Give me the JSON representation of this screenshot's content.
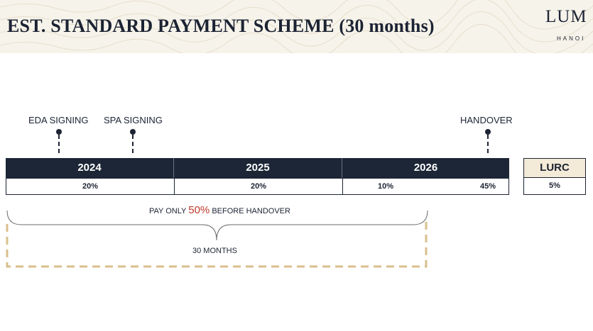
{
  "header": {
    "title": "EST. STANDARD PAYMENT SCHEME (30 months)",
    "brand_word": "LUM",
    "brand_city": "HANOI"
  },
  "milestones": {
    "eda": "EDA SIGNING",
    "spa": "SPA SIGNING",
    "handover": "HANDOVER"
  },
  "years": [
    "2024",
    "2025",
    "2026"
  ],
  "percentages": {
    "y2024": "20%",
    "y2025": "20%",
    "y2026_early": "10%",
    "y2026_handover": "45%"
  },
  "lurc": {
    "label": "LURC",
    "percent": "5%"
  },
  "note": {
    "prefix": "PAY ONLY ",
    "highlight": "50%",
    "suffix": " BEFORE HANDOVER"
  },
  "duration": "30 MONTHS",
  "colors": {
    "navy": "#1c2636",
    "accent_red": "#c0392b",
    "gold_dashed": "#d9bf8c",
    "lurc_fill": "#f3ead7"
  }
}
